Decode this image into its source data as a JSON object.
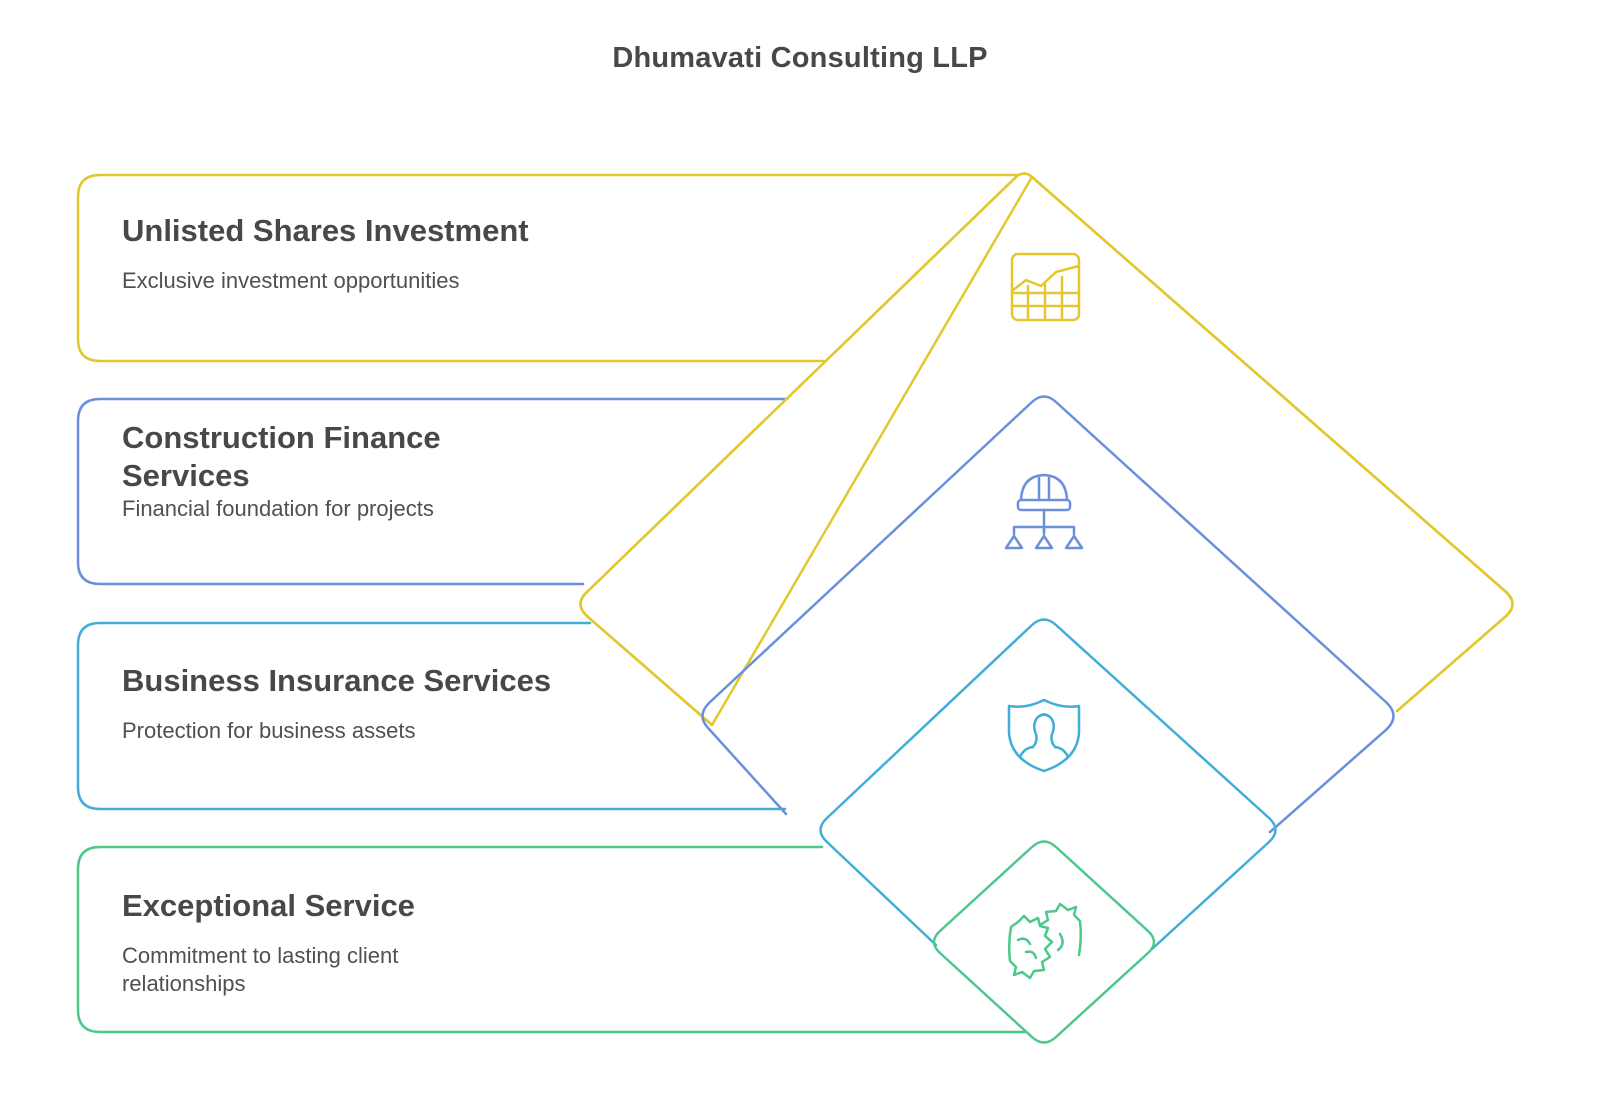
{
  "title": "Dhumavati Consulting LLP",
  "colors": {
    "yellow": "#E3C72E",
    "blue": "#6A90DC",
    "cyan": "#40AED8",
    "green": "#4CC88A"
  },
  "items": [
    {
      "title": "Unlisted Shares Investment",
      "description": "Exclusive investment opportunities",
      "icon": "growth-chart-icon",
      "color": "#E3C72E"
    },
    {
      "title": "Construction Finance Services",
      "description": "Financial foundation for projects",
      "icon": "hardhat-hierarchy-icon",
      "color": "#6A90DC"
    },
    {
      "title": "Business Insurance Services",
      "description": "Protection for business assets",
      "icon": "shield-person-icon",
      "color": "#40AED8"
    },
    {
      "title": "Exceptional Service",
      "description": "Commitment to lasting client relationships",
      "icon": "handshake-icon",
      "color": "#4CC88A"
    }
  ]
}
